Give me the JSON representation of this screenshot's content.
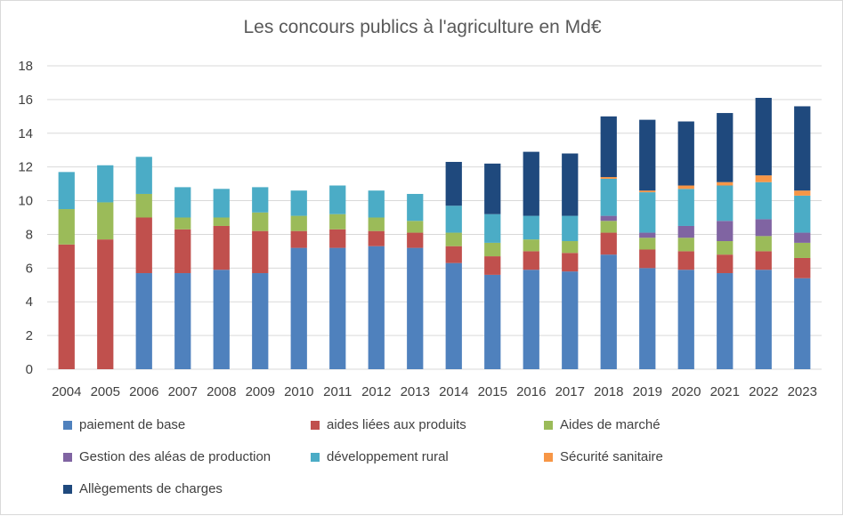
{
  "chart_data": {
    "type": "bar",
    "stacked": true,
    "title": "Les concours publics à l'agriculture en Md€",
    "xlabel": "",
    "ylabel": "",
    "ylim": [
      0,
      18
    ],
    "yticks": [
      0,
      2,
      4,
      6,
      8,
      10,
      12,
      14,
      16,
      18
    ],
    "grid": true,
    "legend_position": "bottom",
    "categories": [
      "2004",
      "2005",
      "2006",
      "2007",
      "2008",
      "2009",
      "2010",
      "2011",
      "2012",
      "2013",
      "2014",
      "2015",
      "2016",
      "2017",
      "2018",
      "2019",
      "2020",
      "2021",
      "2022",
      "2023"
    ],
    "series": [
      {
        "name": "paiement de base",
        "color": "#4F81BD",
        "values": [
          0,
          0,
          5.7,
          5.7,
          5.9,
          5.7,
          7.2,
          7.2,
          7.3,
          7.2,
          6.3,
          5.6,
          5.9,
          5.8,
          6.8,
          6.0,
          5.9,
          5.7,
          5.9,
          5.4
        ]
      },
      {
        "name": "aides liées aux produits",
        "color": "#C0504D",
        "values": [
          7.4,
          7.7,
          3.3,
          2.6,
          2.6,
          2.5,
          1.0,
          1.1,
          0.9,
          0.9,
          1.0,
          1.1,
          1.1,
          1.1,
          1.3,
          1.1,
          1.1,
          1.1,
          1.1,
          1.2
        ]
      },
      {
        "name": "Aides de marché",
        "color": "#9BBB59",
        "values": [
          2.1,
          2.2,
          1.4,
          0.7,
          0.5,
          1.1,
          0.9,
          0.9,
          0.8,
          0.7,
          0.8,
          0.8,
          0.7,
          0.7,
          0.7,
          0.7,
          0.8,
          0.8,
          0.9,
          0.9
        ]
      },
      {
        "name": "Gestion des aléas de production",
        "color": "#8064A2",
        "values": [
          0,
          0,
          0,
          0,
          0,
          0,
          0,
          0,
          0,
          0,
          0,
          0,
          0,
          0,
          0.3,
          0.3,
          0.7,
          1.2,
          1.0,
          0.6
        ]
      },
      {
        "name": "développement rural",
        "color": "#4BACC6",
        "values": [
          2.2,
          2.2,
          2.2,
          1.8,
          1.7,
          1.5,
          1.5,
          1.7,
          1.6,
          1.6,
          1.6,
          1.7,
          1.4,
          1.5,
          2.2,
          2.4,
          2.2,
          2.1,
          2.2,
          2.2
        ]
      },
      {
        "name": "Sécurité sanitaire",
        "color": "#F79646",
        "values": [
          0,
          0,
          0,
          0,
          0,
          0,
          0,
          0,
          0,
          0,
          0,
          0,
          0,
          0,
          0.1,
          0.1,
          0.2,
          0.2,
          0.4,
          0.3
        ]
      },
      {
        "name": "Allègements de charges",
        "color": "#1F497D",
        "values": [
          0,
          0,
          0,
          0,
          0,
          0,
          0,
          0,
          0,
          0,
          2.6,
          3.0,
          3.8,
          3.7,
          3.6,
          4.2,
          3.8,
          4.1,
          4.6,
          5.0
        ]
      }
    ]
  }
}
